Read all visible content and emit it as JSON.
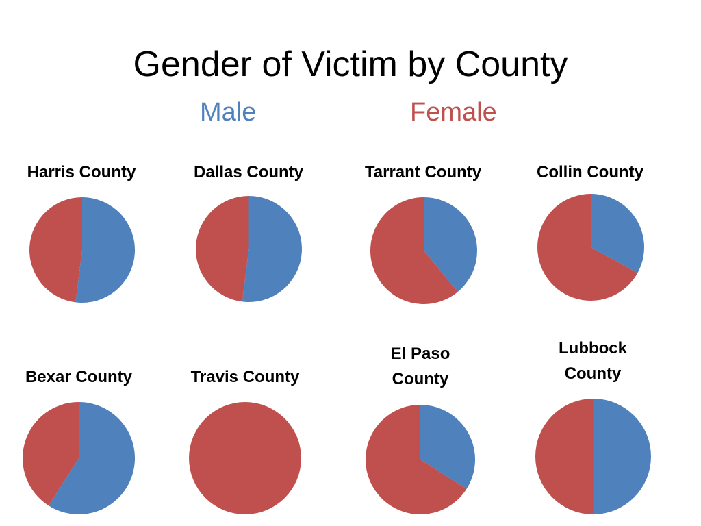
{
  "title": "Gender of Victim by County",
  "legend": {
    "male": {
      "label": "Male",
      "color": "#4f81bd"
    },
    "female": {
      "label": "Female",
      "color": "#c0504d"
    }
  },
  "chart_data": {
    "type": "pie",
    "title": "Gender of Victim by County",
    "series_names": [
      "Male",
      "Female"
    ],
    "colors": {
      "Male": "#4f81bd",
      "Female": "#c0504d"
    },
    "pies": [
      {
        "label": "Harris County",
        "male": 52,
        "female": 48
      },
      {
        "label": "Dallas County",
        "male": 52,
        "female": 48
      },
      {
        "label": "Tarrant County",
        "male": 39,
        "female": 61
      },
      {
        "label": "Collin County",
        "male": 33,
        "female": 67
      },
      {
        "label": "Bexar County",
        "male": 59,
        "female": 41
      },
      {
        "label": "Travis County",
        "male": 0,
        "female": 100
      },
      {
        "label": "El Paso County",
        "male": 34,
        "female": 66
      },
      {
        "label": "Lubbock County",
        "male": 50,
        "female": 50
      }
    ]
  }
}
